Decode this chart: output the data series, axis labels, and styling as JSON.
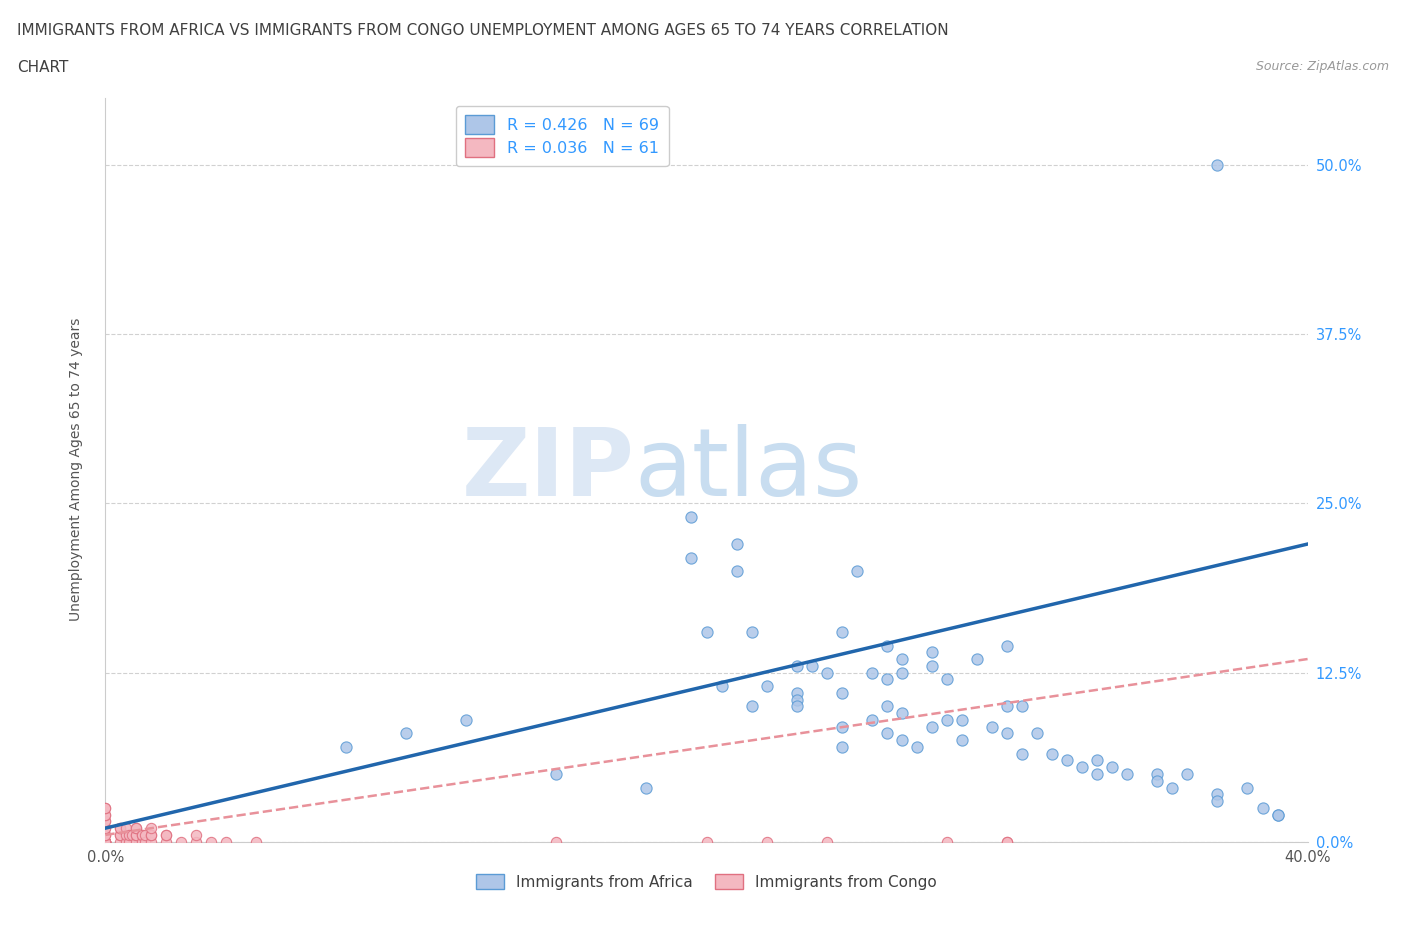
{
  "title_line1": "IMMIGRANTS FROM AFRICA VS IMMIGRANTS FROM CONGO UNEMPLOYMENT AMONG AGES 65 TO 74 YEARS CORRELATION",
  "title_line2": "CHART",
  "source_text": "Source: ZipAtlas.com",
  "ylabel": "Unemployment Among Ages 65 to 74 years",
  "xlim": [
    0.0,
    0.4
  ],
  "ylim": [
    0.0,
    0.55
  ],
  "yticks": [
    0.0,
    0.125,
    0.25,
    0.375,
    0.5
  ],
  "ytick_labels": [
    "",
    "",
    "",
    "",
    ""
  ],
  "ytick_right_labels": [
    "0.0%",
    "12.5%",
    "25.0%",
    "37.5%",
    "50.0%"
  ],
  "xticks": [
    0.0,
    0.1,
    0.2,
    0.3,
    0.4
  ],
  "xtick_labels": [
    "0.0%",
    "",
    "",
    "",
    "40.0%"
  ],
  "africa_color": "#aec6e8",
  "africa_edge": "#5b9bd5",
  "congo_color": "#f4b8c1",
  "congo_edge": "#e07080",
  "trendline_africa_color": "#2166ac",
  "trendline_congo_color": "#e8919a",
  "R_africa": 0.426,
  "N_africa": 69,
  "R_congo": 0.036,
  "N_congo": 61,
  "watermark_ZIP": "ZIP",
  "watermark_atlas": "atlas",
  "legend_label_africa": "Immigrants from Africa",
  "legend_label_congo": "Immigrants from Congo",
  "africa_x": [
    0.37,
    0.195,
    0.21,
    0.195,
    0.21,
    0.25,
    0.2,
    0.215,
    0.245,
    0.3,
    0.26,
    0.275,
    0.265,
    0.29,
    0.23,
    0.235,
    0.275,
    0.24,
    0.255,
    0.265,
    0.26,
    0.28,
    0.22,
    0.205,
    0.23,
    0.245,
    0.23,
    0.215,
    0.26,
    0.23,
    0.3,
    0.305,
    0.265,
    0.255,
    0.285,
    0.28,
    0.245,
    0.295,
    0.275,
    0.26,
    0.31,
    0.3,
    0.285,
    0.265,
    0.27,
    0.245,
    0.315,
    0.305,
    0.33,
    0.32,
    0.335,
    0.325,
    0.33,
    0.34,
    0.35,
    0.36,
    0.35,
    0.355,
    0.38,
    0.37,
    0.37,
    0.385,
    0.39,
    0.39,
    0.08,
    0.1,
    0.12,
    0.15,
    0.18
  ],
  "africa_y": [
    0.5,
    0.24,
    0.22,
    0.21,
    0.2,
    0.2,
    0.155,
    0.155,
    0.155,
    0.145,
    0.145,
    0.14,
    0.135,
    0.135,
    0.13,
    0.13,
    0.13,
    0.125,
    0.125,
    0.125,
    0.12,
    0.12,
    0.115,
    0.115,
    0.11,
    0.11,
    0.105,
    0.1,
    0.1,
    0.1,
    0.1,
    0.1,
    0.095,
    0.09,
    0.09,
    0.09,
    0.085,
    0.085,
    0.085,
    0.08,
    0.08,
    0.08,
    0.075,
    0.075,
    0.07,
    0.07,
    0.065,
    0.065,
    0.06,
    0.06,
    0.055,
    0.055,
    0.05,
    0.05,
    0.05,
    0.05,
    0.045,
    0.04,
    0.04,
    0.035,
    0.03,
    0.025,
    0.02,
    0.02,
    0.07,
    0.08,
    0.09,
    0.05,
    0.04
  ],
  "congo_x": [
    0.0,
    0.0,
    0.0,
    0.0,
    0.0,
    0.0,
    0.0,
    0.0,
    0.0,
    0.0,
    0.0,
    0.0,
    0.0,
    0.0,
    0.0,
    0.0,
    0.0,
    0.0,
    0.0,
    0.0,
    0.005,
    0.005,
    0.005,
    0.005,
    0.005,
    0.007,
    0.007,
    0.007,
    0.008,
    0.008,
    0.009,
    0.01,
    0.01,
    0.01,
    0.01,
    0.01,
    0.012,
    0.012,
    0.012,
    0.013,
    0.013,
    0.015,
    0.015,
    0.015,
    0.015,
    0.02,
    0.02,
    0.02,
    0.025,
    0.03,
    0.03,
    0.035,
    0.04,
    0.05,
    0.22,
    0.3,
    0.3,
    0.28,
    0.24,
    0.2,
    0.15
  ],
  "congo_y": [
    0.0,
    0.0,
    0.0,
    0.0,
    0.0,
    0.0,
    0.0,
    0.0,
    0.0,
    0.0,
    0.005,
    0.005,
    0.01,
    0.01,
    0.015,
    0.015,
    0.02,
    0.02,
    0.025,
    0.025,
    0.0,
    0.005,
    0.005,
    0.01,
    0.01,
    0.0,
    0.005,
    0.01,
    0.0,
    0.005,
    0.005,
    0.0,
    0.005,
    0.005,
    0.01,
    0.01,
    0.0,
    0.005,
    0.005,
    0.0,
    0.005,
    0.0,
    0.005,
    0.005,
    0.01,
    0.0,
    0.005,
    0.005,
    0.0,
    0.0,
    0.005,
    0.0,
    0.0,
    0.0,
    0.0,
    0.0,
    0.0,
    0.0,
    0.0,
    0.0,
    0.0
  ],
  "africa_trend_x": [
    0.0,
    0.4
  ],
  "africa_trend_y": [
    0.01,
    0.22
  ],
  "congo_trend_x": [
    0.0,
    0.4
  ],
  "congo_trend_y": [
    0.005,
    0.135
  ]
}
